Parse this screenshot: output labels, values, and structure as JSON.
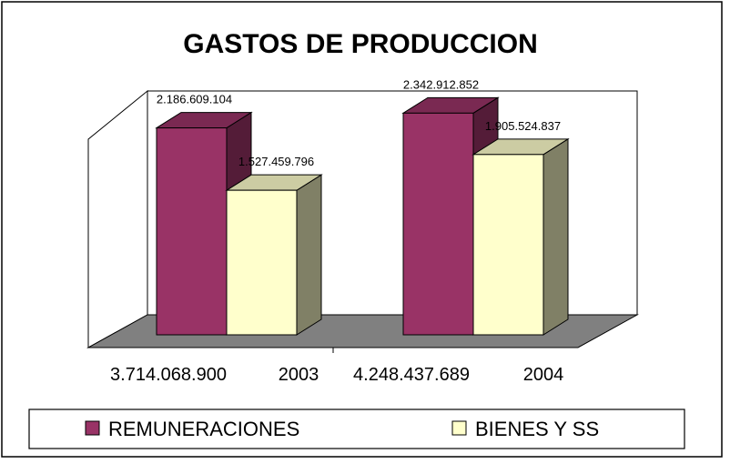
{
  "chart_data": {
    "type": "bar",
    "title": "GASTOS DE PRODUCCION",
    "categories": [
      "3.714.068.900    2003",
      "4.248.437.689    2004"
    ],
    "category_parts": [
      {
        "total": "3.714.068.900",
        "year": "2003"
      },
      {
        "total": "4.248.437.689",
        "year": "2004"
      }
    ],
    "series": [
      {
        "name": "REMUNERACIONES",
        "values": [
          2186609104,
          2342912852
        ],
        "labels": [
          "2.186.609.104",
          "2.342.912.852"
        ],
        "color": "#993366"
      },
      {
        "name": "BIENES Y SS",
        "values": [
          1527459796,
          1905524837
        ],
        "labels": [
          "1.527.459.796",
          "1.905.524.837"
        ],
        "color": "#FFFFCC"
      }
    ],
    "ylim": [
      0,
      3000000000
    ],
    "grid": false,
    "style": "3d-clustered-column",
    "legend_position": "bottom",
    "colors": {
      "floor": "#808080",
      "outline": "#000000"
    }
  }
}
